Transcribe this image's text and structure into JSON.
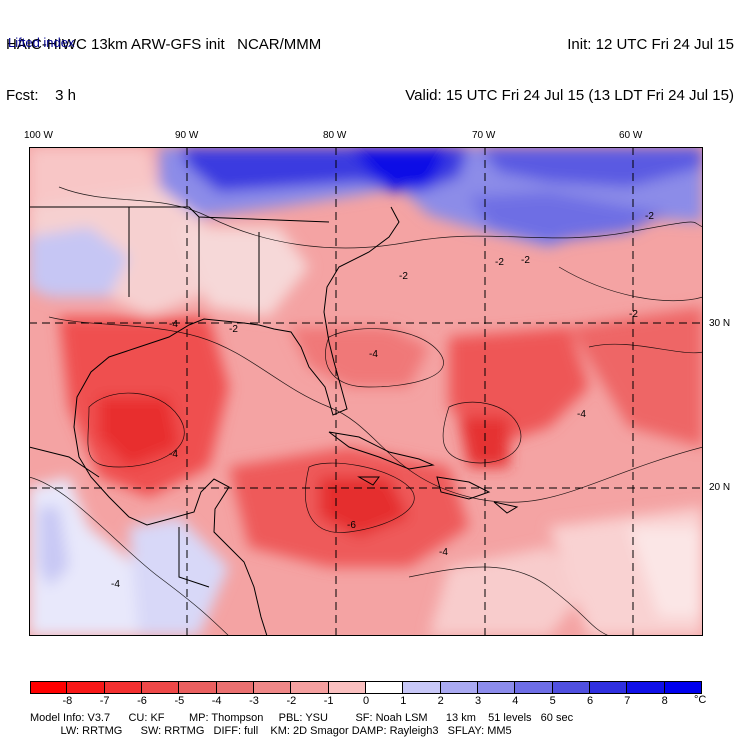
{
  "header": {
    "model_line": "HAIC-HIWC 13km ARW-GFS init   NCAR/MMM",
    "fcst_line": "Fcst:    3 h",
    "init_line": "Init: 12 UTC Fri 24 Jul 15",
    "valid_line": "Valid: 15 UTC Fri 24 Jul 15 (13 LDT Fri 24 Jul 15)",
    "field_name": "Lifted index"
  },
  "map": {
    "lon_labels": [
      "100 W",
      "90 W",
      "80 W",
      "70 W",
      "60 W"
    ],
    "lat_labels": [
      "30 N",
      "20 N"
    ],
    "contour_labels": [
      "-2",
      "-2",
      "-2",
      "-2",
      "-2",
      "-2",
      "-4",
      "-4",
      "-4",
      "-4",
      "-4",
      "-6",
      "-4"
    ]
  },
  "colorbar": {
    "ticks": [
      "-8",
      "-7",
      "-6",
      "-5",
      "-4",
      "-3",
      "-2",
      "-1",
      "0",
      "1",
      "2",
      "3",
      "4",
      "5",
      "6",
      "7",
      "8"
    ],
    "unit": "°C",
    "colors": [
      "#ff0000",
      "#f81818",
      "#f33030",
      "#ee4848",
      "#ea6060",
      "#ea7070",
      "#f08888",
      "#f5a0a0",
      "#fac0c0",
      "#ffffff",
      "#c8c8f8",
      "#aaaaf2",
      "#8c8cec",
      "#6e6ee6",
      "#5050e0",
      "#3030e0",
      "#1010e8",
      "#0000ee"
    ]
  },
  "footer": {
    "line1": "Model Info: V3.7      CU: KF        MP: Thompson     PBL: YSU         SF: Noah LSM      13 km    51 levels   60 sec",
    "line2": "          LW: RRTMG      SW: RRTMG   DIFF: full    KM: 2D Smagor DAMP: Rayleigh3   SFLAY: MM5"
  }
}
